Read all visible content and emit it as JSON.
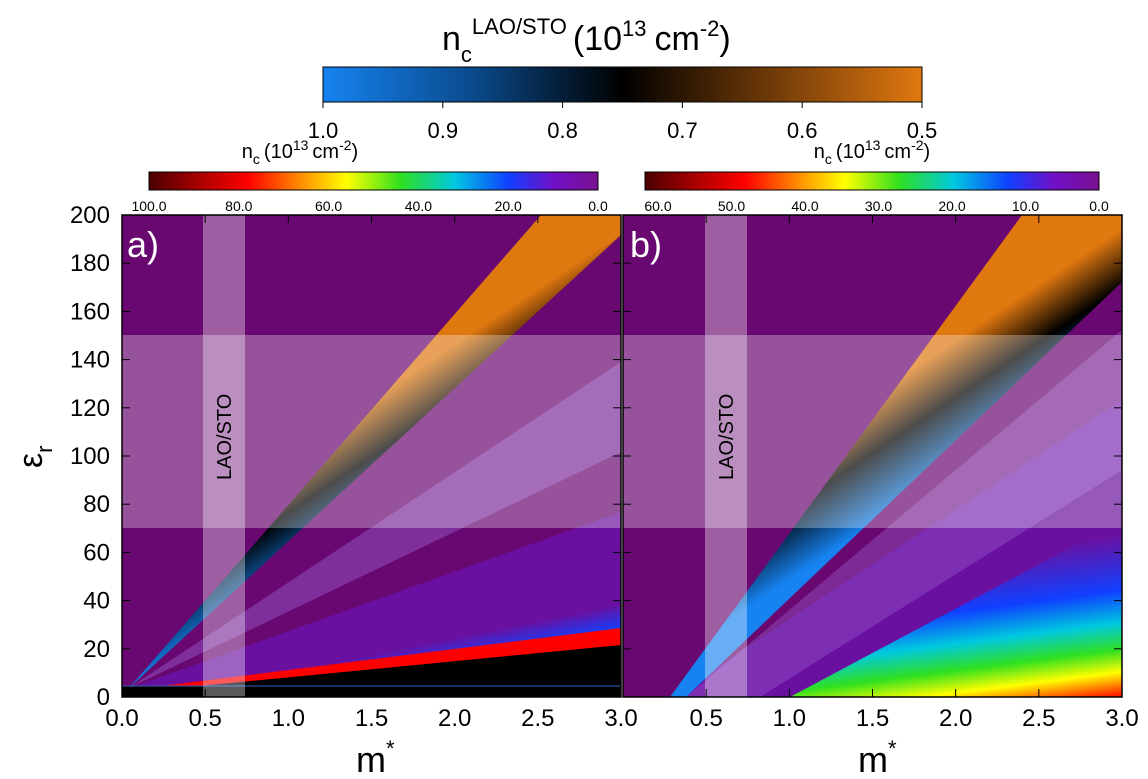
{
  "top_colorbar": {
    "title_base": "n",
    "title_sub": "c",
    "title_sup": "LAO/STO",
    "title_unit_pre": "(10",
    "title_unit_exp": "13",
    "title_unit_mid": "cm",
    "title_unit_exp2": "-2",
    "title_unit_post": ")",
    "ticks": [
      "1.0",
      "0.9",
      "0.8",
      "0.7",
      "0.6",
      "0.5"
    ],
    "colors": [
      "#1683f0",
      "#000000",
      "#e07810"
    ]
  },
  "panel_colorbar": {
    "title_base": "n",
    "title_sub": "c",
    "title_pre": "(10",
    "title_exp": "13",
    "title_mid": "cm",
    "title_exp2": "-2",
    "title_post": ")"
  },
  "axis": {
    "ylabel": "ε",
    "ylabel_sub": "r",
    "xlabel": "m",
    "xlabel_sup": "*",
    "yticks": [
      "0",
      "20",
      "40",
      "60",
      "80",
      "100",
      "120",
      "140",
      "160",
      "180",
      "200"
    ],
    "xticks_a": [
      "0.0",
      "0.5",
      "1.0",
      "1.5",
      "2.0",
      "2.5",
      "3.0"
    ],
    "xticks_b": [
      "0.5",
      "1.0",
      "1.5",
      "2.0",
      "2.5",
      "3.0"
    ]
  },
  "chart_data": [
    {
      "type": "heatmap",
      "panel": "a)",
      "xlabel": "m*",
      "ylabel": "εr",
      "xlim": [
        0,
        3
      ],
      "ylim": [
        0,
        200
      ],
      "colorbar_label": "nc (10^13 cm^-2)",
      "colorbar_ticks": [
        "100.0",
        "80.0",
        "60.0",
        "40.0",
        "20.0",
        "0.0"
      ],
      "colorbar_range": [
        0,
        100
      ],
      "lao_sto_band": {
        "label": "LAO/STO",
        "m_range": [
          0.5,
          0.75
        ],
        "er_range": [
          70,
          150
        ]
      },
      "lao_sto_contour_slopes": {
        "nc_1.0": 33.5,
        "nc_0.5": 67
      },
      "region_below_er": 4
    },
    {
      "type": "heatmap",
      "panel": "b)",
      "xlabel": "m*",
      "ylabel": "εr",
      "xlim": [
        0,
        3
      ],
      "ylim": [
        0,
        200
      ],
      "colorbar_label": "nc (10^13 cm^-2)",
      "colorbar_ticks": [
        "60.0",
        "50.0",
        "40.0",
        "30.0",
        "20.0",
        "10.0",
        "0.0"
      ],
      "colorbar_range": [
        0,
        60
      ],
      "lao_sto_band": {
        "label": "LAO/STO",
        "m_range": [
          0.5,
          0.75
        ],
        "er_range": [
          70,
          150
        ]
      },
      "lao_sto_contour_lines": {
        "nc_1.0": {
          "slope": 74.5,
          "m0": 0.3
        },
        "nc_0.5": {
          "slope": 127,
          "m0": 0.3
        }
      }
    }
  ]
}
